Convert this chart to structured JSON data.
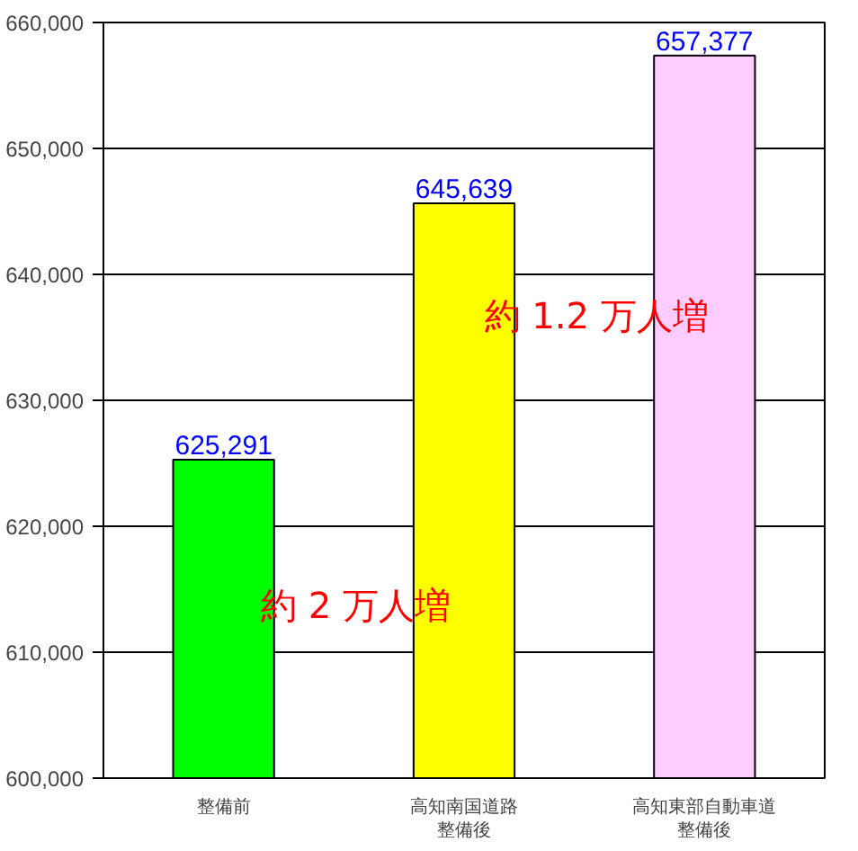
{
  "chart_data": {
    "type": "bar",
    "categories": [
      "整備前",
      "高知南国道路整備後",
      "高知東部自動車道整備後"
    ],
    "values": [
      625291,
      645639,
      657377
    ],
    "colors": [
      "#00ff00",
      "#ffff00",
      "#ffccff"
    ],
    "ylim": [
      600000,
      660000
    ],
    "yticks": [
      {
        "value": 600000,
        "label": "600,000"
      },
      {
        "value": 610000,
        "label": "610,000"
      },
      {
        "value": 620000,
        "label": "620,000"
      },
      {
        "value": 630000,
        "label": "630,000"
      },
      {
        "value": 640000,
        "label": "640,000"
      },
      {
        "value": 650000,
        "label": "650,000"
      },
      {
        "value": 660000,
        "label": "660,000"
      }
    ],
    "grid": "y",
    "value_labels": [
      "625,291",
      "645,639",
      "657,377"
    ],
    "annotations": [
      "約 2 万人増",
      "約 1.2 万人増"
    ]
  }
}
